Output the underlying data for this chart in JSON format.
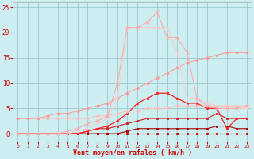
{
  "xlabel": "Vent moyen/en rafales ( km/h )",
  "background_color": "#cdeef0",
  "grid_color": "#9dc8cc",
  "xlim": [
    -0.5,
    23.5
  ],
  "ylim": [
    -1.5,
    26
  ],
  "xticks": [
    0,
    1,
    2,
    3,
    4,
    5,
    6,
    7,
    8,
    9,
    10,
    11,
    12,
    13,
    14,
    15,
    16,
    17,
    18,
    19,
    20,
    21,
    22,
    23
  ],
  "yticks": [
    0,
    5,
    10,
    15,
    20,
    25
  ],
  "lines": [
    {
      "x": [
        0,
        1,
        2,
        3,
        4,
        5,
        6,
        7,
        8,
        9,
        10,
        11,
        12,
        13,
        14,
        15,
        16,
        17,
        18,
        19,
        20,
        21,
        22,
        23
      ],
      "y": [
        0,
        0,
        0,
        0,
        0,
        0,
        0,
        0,
        0,
        0,
        0,
        0,
        0,
        0,
        0,
        0,
        0,
        0,
        0,
        0,
        0,
        0,
        0,
        0
      ],
      "color": "#cc0000",
      "marker": "s",
      "markersize": 1.5,
      "linewidth": 0.8
    },
    {
      "x": [
        0,
        1,
        2,
        3,
        4,
        5,
        6,
        7,
        8,
        9,
        10,
        11,
        12,
        13,
        14,
        15,
        16,
        17,
        18,
        19,
        20,
        21,
        22,
        23
      ],
      "y": [
        0,
        0,
        0,
        0,
        0,
        0,
        0,
        0,
        0,
        0,
        0,
        0.5,
        1,
        1,
        1,
        1,
        1,
        1,
        1,
        1,
        1.5,
        1.5,
        1,
        1
      ],
      "color": "#aa0000",
      "marker": "s",
      "markersize": 1.5,
      "linewidth": 0.8
    },
    {
      "x": [
        0,
        1,
        2,
        3,
        4,
        5,
        6,
        7,
        8,
        9,
        10,
        11,
        12,
        13,
        14,
        15,
        16,
        17,
        18,
        19,
        20,
        21,
        22,
        23
      ],
      "y": [
        0,
        0,
        0,
        0,
        0,
        0,
        0,
        0.5,
        1,
        1,
        1.5,
        2,
        2.5,
        3,
        3,
        3,
        3,
        3,
        3,
        3,
        4,
        3,
        3,
        3
      ],
      "color": "#cc2222",
      "marker": "s",
      "markersize": 1.5,
      "linewidth": 0.8
    },
    {
      "x": [
        0,
        1,
        2,
        3,
        4,
        5,
        6,
        7,
        8,
        9,
        10,
        11,
        12,
        13,
        14,
        15,
        16,
        17,
        18,
        19,
        20,
        21,
        22,
        23
      ],
      "y": [
        0,
        0,
        0,
        0,
        0,
        0,
        0,
        0.5,
        1,
        1.5,
        2.5,
        4,
        6,
        7,
        8,
        8,
        7,
        6,
        6,
        5,
        5,
        1,
        3,
        3
      ],
      "color": "#ff2020",
      "marker": "s",
      "markersize": 2,
      "linewidth": 0.9
    },
    {
      "x": [
        0,
        1,
        2,
        3,
        4,
        5,
        6,
        7,
        8,
        9,
        10,
        11,
        12,
        13,
        14,
        15,
        16,
        17,
        18,
        19,
        20,
        21,
        22,
        23
      ],
      "y": [
        3,
        3,
        3,
        3,
        3,
        3,
        3,
        3,
        3.5,
        3.5,
        4,
        4.5,
        4.5,
        5,
        5,
        5,
        5.5,
        5.5,
        5.5,
        5.5,
        5.5,
        5.5,
        5.5,
        5.5
      ],
      "color": "#ffbbbb",
      "marker": "D",
      "markersize": 1.8,
      "linewidth": 0.7
    },
    {
      "x": [
        0,
        1,
        2,
        3,
        4,
        5,
        6,
        7,
        8,
        9,
        10,
        11,
        12,
        13,
        14,
        15,
        16,
        17,
        18,
        19,
        20,
        21,
        22,
        23
      ],
      "y": [
        3,
        3,
        3,
        3.5,
        4,
        4,
        4.5,
        5,
        5.5,
        6,
        7,
        8,
        9,
        10,
        11,
        12,
        13,
        14,
        14.5,
        15,
        15.5,
        16,
        16,
        16
      ],
      "color": "#ff9999",
      "marker": "D",
      "markersize": 1.8,
      "linewidth": 0.7
    },
    {
      "x": [
        0,
        1,
        2,
        3,
        4,
        5,
        6,
        7,
        8,
        9,
        10,
        11,
        12,
        13,
        14,
        15,
        16,
        17,
        18,
        19,
        20,
        21,
        22,
        23
      ],
      "y": [
        0,
        0,
        0,
        0,
        0,
        0,
        0.5,
        1,
        2,
        3,
        7,
        21,
        21,
        21,
        21,
        21,
        16,
        7,
        7,
        6,
        5.5,
        5,
        5,
        5
      ],
      "color": "#ffcccc",
      "marker": "+",
      "markersize": 3,
      "linewidth": 0.8
    },
    {
      "x": [
        0,
        1,
        2,
        3,
        4,
        5,
        6,
        7,
        8,
        9,
        10,
        11,
        12,
        13,
        14,
        15,
        16,
        17,
        18,
        19,
        20,
        21,
        22,
        23
      ],
      "y": [
        0,
        0,
        0,
        0,
        0,
        0.5,
        1,
        2,
        2.5,
        3.5,
        10,
        21,
        21,
        22,
        24,
        19,
        19,
        16,
        7,
        5.5,
        5,
        5,
        5,
        5.5
      ],
      "color": "#ffaaaa",
      "marker": "x",
      "markersize": 3,
      "linewidth": 0.8
    }
  ]
}
